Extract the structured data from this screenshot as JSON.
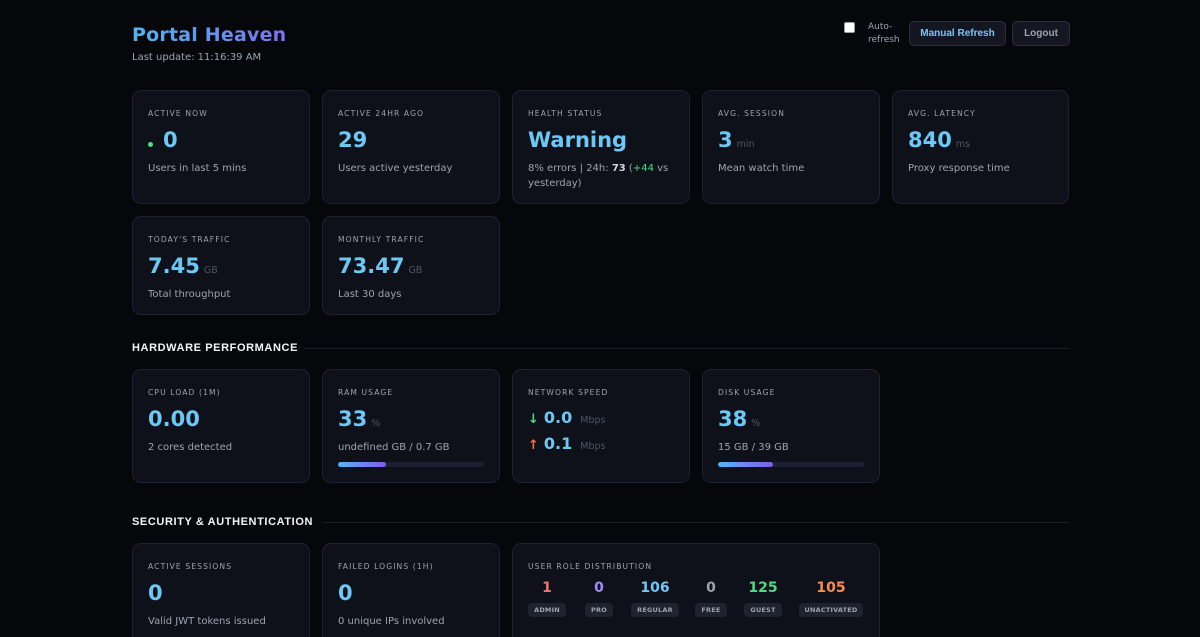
{
  "header": {
    "title": "Portal Heaven",
    "last_update_label": "Last update:",
    "last_update_time": "11:16:39 AM",
    "auto_refresh_label": "Auto-refresh",
    "manual_refresh_label": "Manual Refresh",
    "logout_label": "Logout"
  },
  "stats": {
    "active_now": {
      "label": "ACTIVE NOW",
      "value": "0",
      "sub": "Users in last 5 mins"
    },
    "active_24hr": {
      "label": "ACTIVE 24HR AGO",
      "value": "29",
      "sub": "Users active yesterday"
    },
    "health": {
      "label": "HEALTH STATUS",
      "value": "Warning",
      "sub_prefix": "8% errors | 24h:",
      "sub_count": "73",
      "sub_delta_open": "(",
      "sub_delta": "+44",
      "sub_delta_suffix": "vs yesterday)"
    },
    "avg_session": {
      "label": "AVG. SESSION",
      "value": "3",
      "unit": "min",
      "sub": "Mean watch time"
    },
    "avg_latency": {
      "label": "AVG. LATENCY",
      "value": "840",
      "unit": "ms",
      "sub": "Proxy response time"
    },
    "today_traffic": {
      "label": "TODAY'S TRAFFIC",
      "value": "7.45",
      "unit": "GB",
      "sub": "Total throughput"
    },
    "monthly_traffic": {
      "label": "MONTHLY TRAFFIC",
      "value": "73.47",
      "unit": "GB",
      "sub": "Last 30 days"
    }
  },
  "hardware": {
    "section_title": "HARDWARE PERFORMANCE",
    "cpu": {
      "label": "CPU LOAD (1M)",
      "value": "0.00",
      "sub": "2 cores detected"
    },
    "ram": {
      "label": "RAM USAGE",
      "value": "33",
      "unit": "%",
      "sub": "undefined GB / 0.7 GB",
      "percent": 33
    },
    "network": {
      "label": "NETWORK SPEED",
      "down_arrow": "↓",
      "down_value": "0.0",
      "down_unit": "Mbps",
      "up_arrow": "↑",
      "up_value": "0.1",
      "up_unit": "Mbps"
    },
    "disk": {
      "label": "DISK USAGE",
      "value": "38",
      "unit": "%",
      "sub": "15 GB / 39 GB",
      "percent": 38
    }
  },
  "security": {
    "section_title": "SECURITY & AUTHENTICATION",
    "active_sessions": {
      "label": "ACTIVE SESSIONS",
      "value": "0",
      "sub": "Valid JWT tokens issued"
    },
    "failed_logins": {
      "label": "FAILED LOGINS (1H)",
      "value": "0",
      "sub": "0 unique IPs involved"
    },
    "roles": {
      "label": "USER ROLE DISTRIBUTION",
      "items": [
        {
          "count": "1",
          "name": "ADMIN",
          "color": "#f87171"
        },
        {
          "count": "0",
          "name": "PRO",
          "color": "#a78bfa"
        },
        {
          "count": "106",
          "name": "REGULAR",
          "color": "#6cc9f5"
        },
        {
          "count": "0",
          "name": "FREE",
          "color": "#9ca3af"
        },
        {
          "count": "125",
          "name": "GUEST",
          "color": "#4ade80"
        },
        {
          "count": "105",
          "name": "UNACTIVATED",
          "color": "#fb8c4e"
        }
      ]
    }
  },
  "colors": {
    "accent": "#6cc9f5",
    "warning": "#f97342",
    "success": "#4ade80",
    "background": "#06070b",
    "card": "#0f111a"
  },
  "icons": {
    "online": "green-dot-icon",
    "download": "arrow-down-icon",
    "upload": "arrow-up-icon"
  }
}
